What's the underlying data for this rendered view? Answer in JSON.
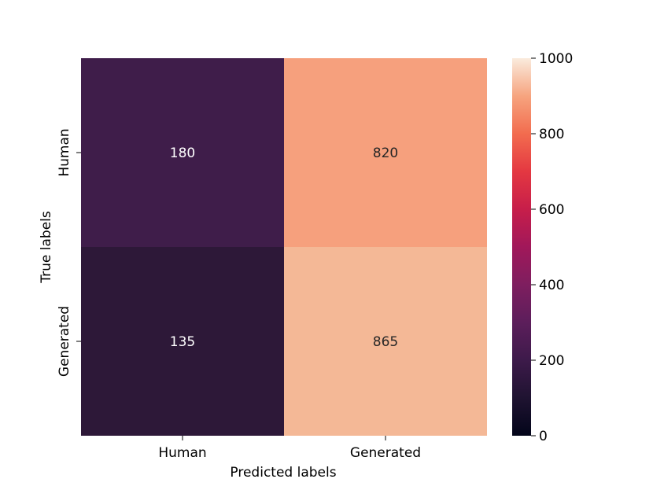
{
  "chart_data": {
    "type": "heatmap",
    "x_categories": [
      "Human",
      "Generated"
    ],
    "y_categories": [
      "Human",
      "Generated"
    ],
    "values": [
      [
        180,
        820
      ],
      [
        135,
        865
      ]
    ],
    "xlabel": "Predicted labels",
    "ylabel": "True labels",
    "colorbar": {
      "min": 0,
      "max": 1000,
      "ticks": [
        0,
        200,
        400,
        600,
        800,
        1000
      ],
      "colormap": "rocket"
    },
    "colors": {
      "cell_180": "#3f1d4a",
      "cell_820": "#f6a07d",
      "cell_135": "#2d1838",
      "cell_865": "#f4b896"
    }
  }
}
